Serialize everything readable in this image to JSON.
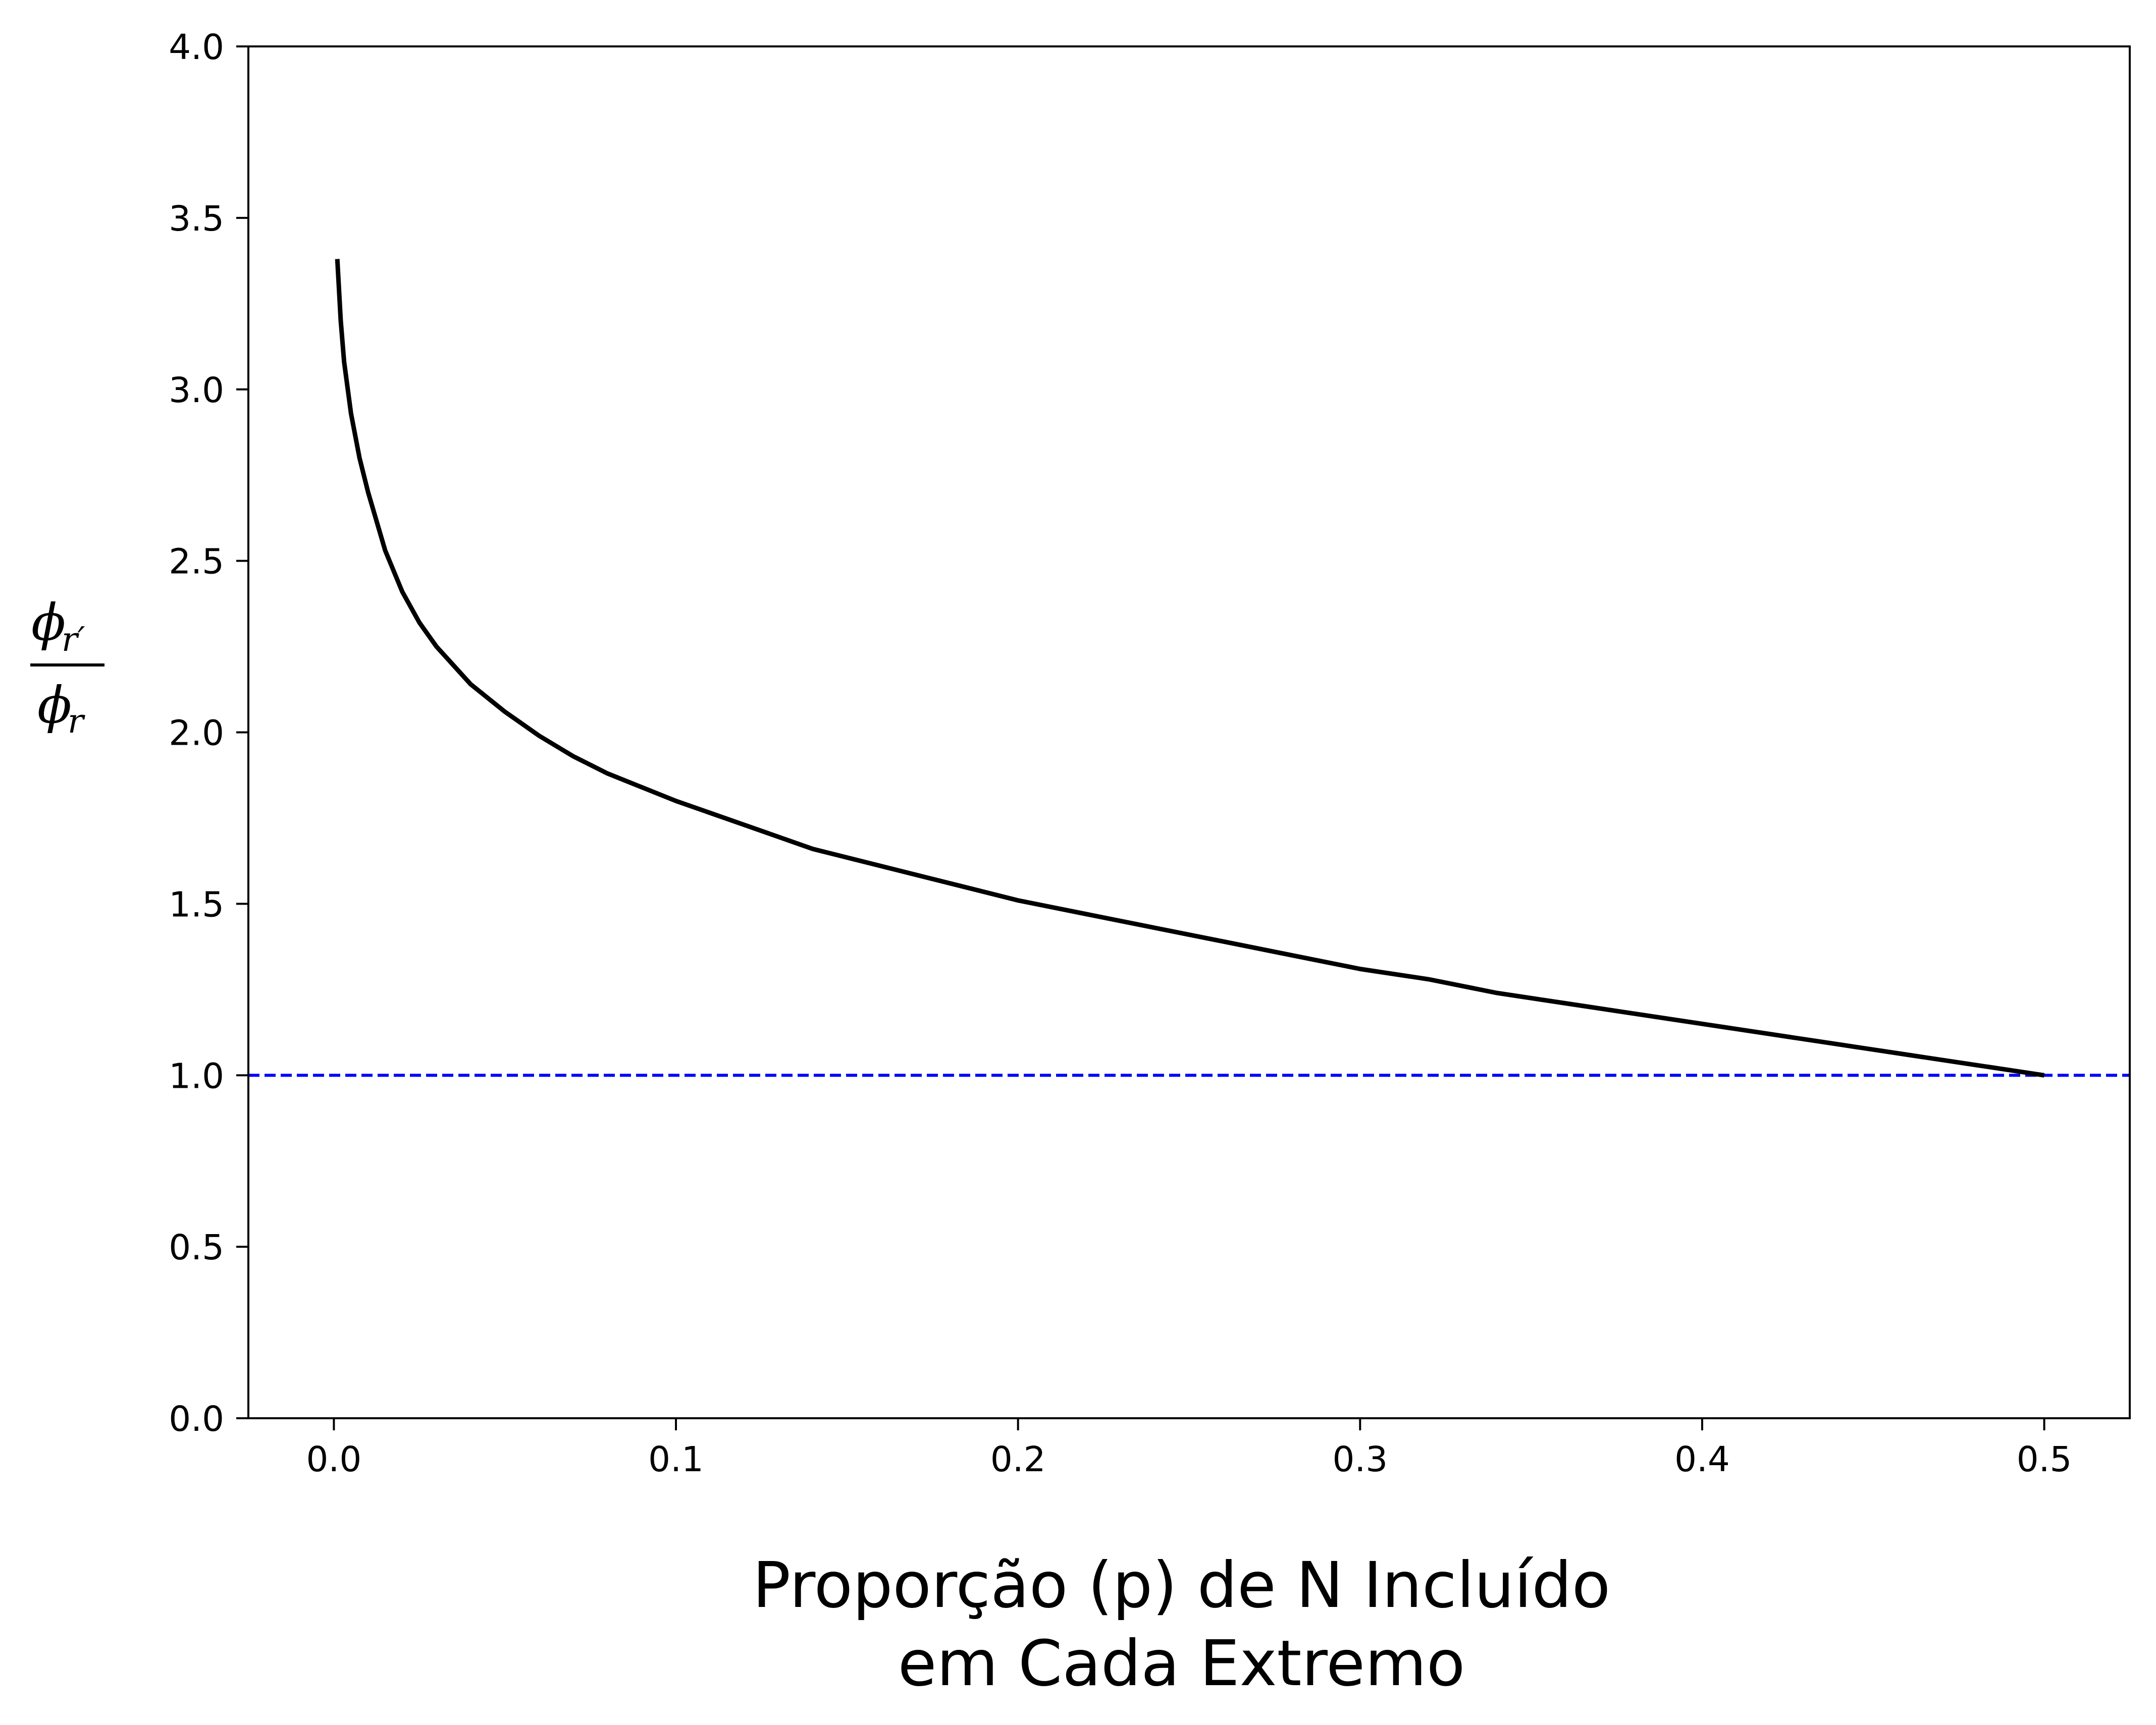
{
  "chart_data": {
    "type": "line",
    "title": "",
    "xlabel": [
      "Proporção (p) de N Incluído",
      "em Cada Extremo"
    ],
    "ylabel": {
      "numerator": "ϕ",
      "numerator_sub": "r′",
      "denominator": "ϕ",
      "denominator_sub": "r"
    },
    "xlim": [
      -0.025,
      0.525
    ],
    "ylim": [
      0.0,
      4.0
    ],
    "xticks": [
      0.0,
      0.1,
      0.2,
      0.3,
      0.4,
      0.5
    ],
    "xtick_labels": [
      "0.0",
      "0.1",
      "0.2",
      "0.3",
      "0.4",
      "0.5"
    ],
    "yticks": [
      0.0,
      0.5,
      1.0,
      1.5,
      2.0,
      2.5,
      3.0,
      3.5,
      4.0
    ],
    "ytick_labels": [
      "0.0",
      "0.5",
      "1.0",
      "1.5",
      "2.0",
      "2.5",
      "3.0",
      "3.5",
      "4.0"
    ],
    "grid": false,
    "series": [
      {
        "style": "solid",
        "color": "#000000",
        "x": [
          0.001,
          0.002,
          0.003,
          0.005,
          0.0075,
          0.01,
          0.015,
          0.02,
          0.025,
          0.03,
          0.04,
          0.05,
          0.06,
          0.07,
          0.08,
          0.09,
          0.1,
          0.12,
          0.14,
          0.16,
          0.18,
          0.2,
          0.22,
          0.24,
          0.26,
          0.28,
          0.3,
          0.32,
          0.34,
          0.36,
          0.38,
          0.4,
          0.42,
          0.44,
          0.46,
          0.48,
          0.5
        ],
        "y": [
          3.38,
          3.2,
          3.08,
          2.93,
          2.8,
          2.7,
          2.53,
          2.41,
          2.32,
          2.25,
          2.14,
          2.06,
          1.99,
          1.93,
          1.88,
          1.84,
          1.8,
          1.73,
          1.66,
          1.61,
          1.56,
          1.51,
          1.47,
          1.43,
          1.39,
          1.35,
          1.31,
          1.28,
          1.24,
          1.21,
          1.18,
          1.15,
          1.12,
          1.09,
          1.06,
          1.03,
          1.0
        ]
      }
    ],
    "reference_line": {
      "y": 1.0,
      "style": "dashed",
      "color": "#0000ff"
    }
  }
}
